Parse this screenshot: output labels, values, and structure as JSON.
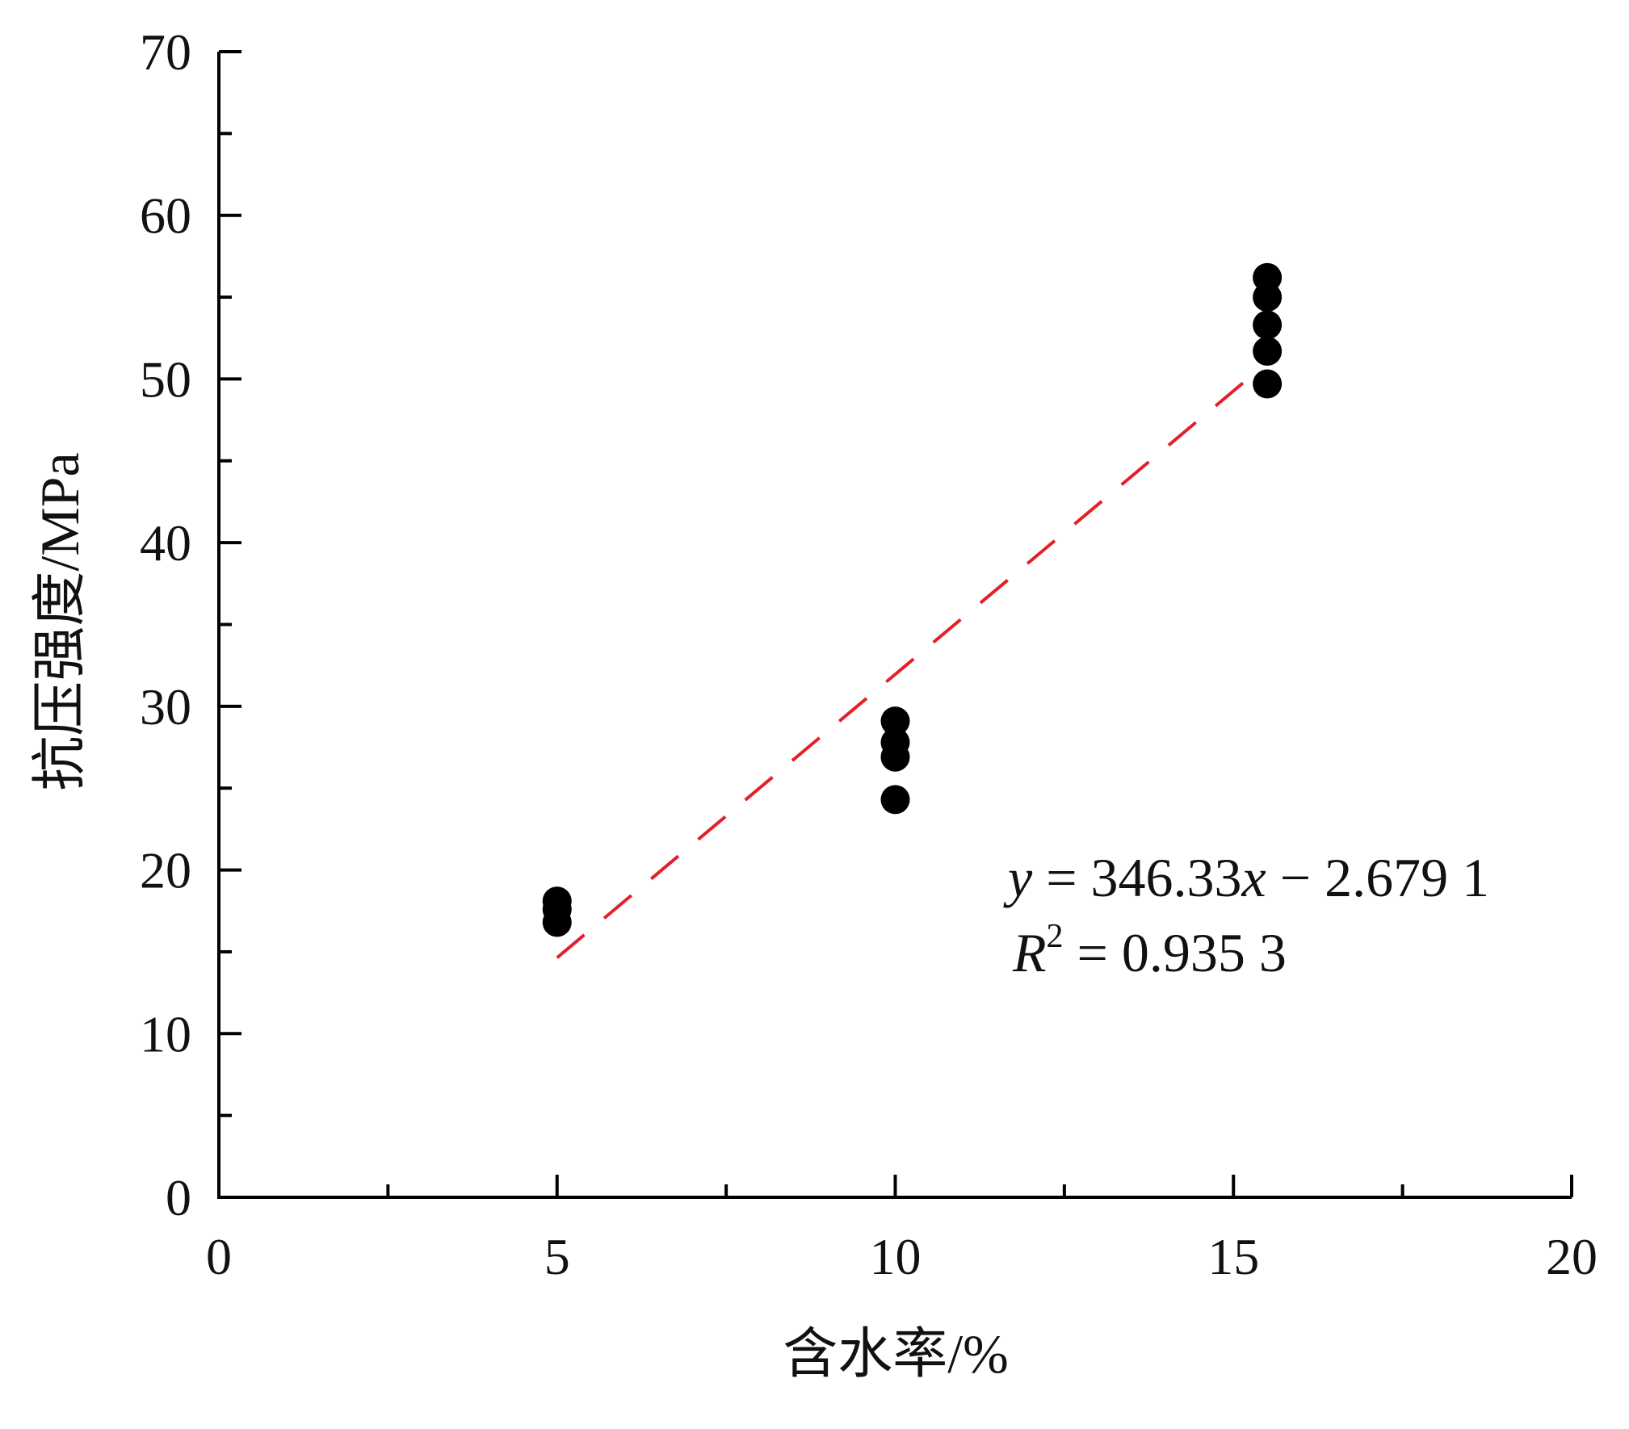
{
  "chart_data": {
    "type": "scatter",
    "xlabel": "含水率/%",
    "ylabel": "抗压强度/MPa",
    "xlim": [
      0,
      20
    ],
    "ylim": [
      0,
      70
    ],
    "xticks": [
      0,
      5,
      10,
      15,
      20
    ],
    "yticks": [
      0,
      10,
      20,
      30,
      40,
      50,
      60,
      70
    ],
    "x_minor_ticks": [
      2.5,
      7.5,
      12.5,
      17.5
    ],
    "y_minor_ticks": [
      5,
      15,
      25,
      35,
      45,
      55,
      65
    ],
    "grid": false,
    "series": [
      {
        "marker": "filled-circle",
        "color": "#000000",
        "points": [
          [
            5,
            18.1
          ],
          [
            5,
            17.6
          ],
          [
            5,
            16.8
          ],
          [
            10,
            29.1
          ],
          [
            10,
            27.8
          ],
          [
            10,
            26.9
          ],
          [
            10,
            24.3
          ],
          [
            15.5,
            56.2
          ],
          [
            15.5,
            55.0
          ],
          [
            15.5,
            53.3
          ],
          [
            15.5,
            51.7
          ],
          [
            15.5,
            49.7
          ]
        ]
      }
    ],
    "fit_line": {
      "style": "dashed",
      "color": "#e3202a",
      "x": [
        5,
        15.15
      ],
      "y": [
        14.64,
        49.79
      ]
    },
    "annotations": {
      "equation": [
        "y",
        " = 346.33",
        "x",
        " − 2.679 1"
      ],
      "r_squared": [
        "R",
        "2",
        " = 0.935 3"
      ]
    }
  }
}
